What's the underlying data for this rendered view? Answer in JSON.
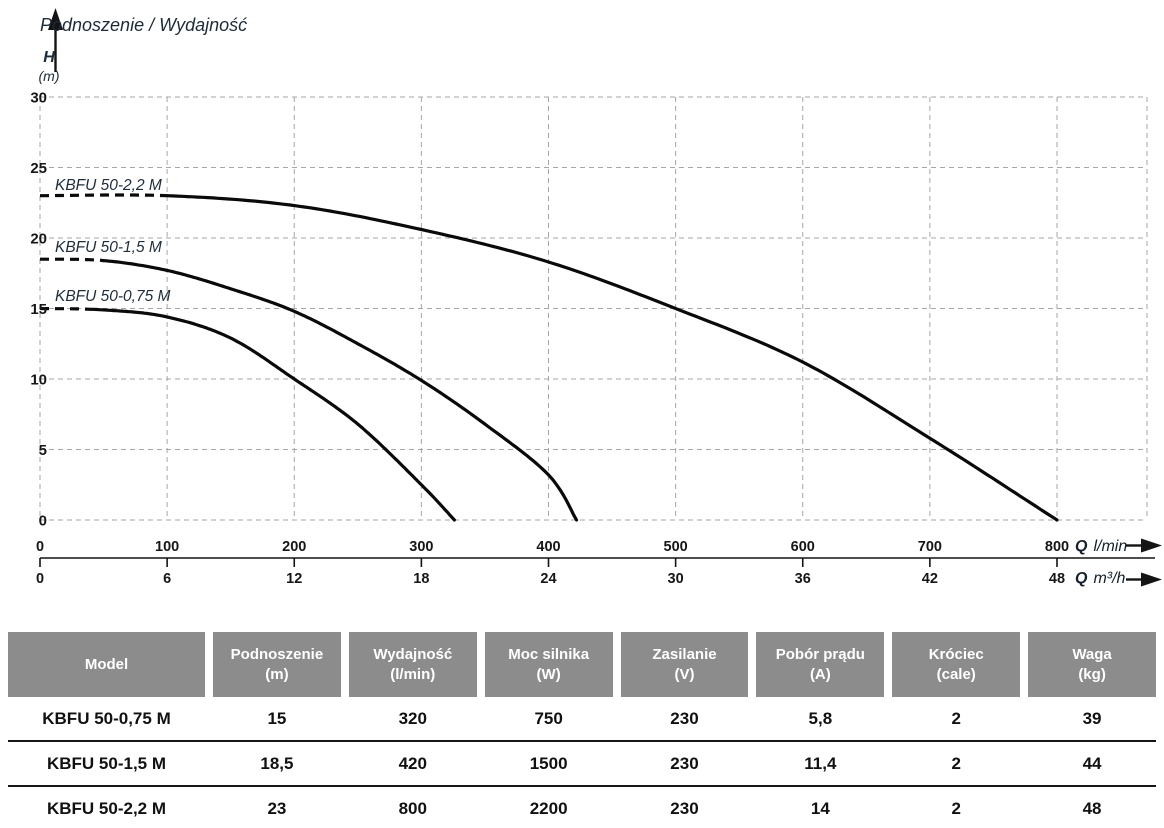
{
  "chart_data": {
    "type": "line",
    "title": "Podnoszenie / Wydajność",
    "grid": "dashed",
    "legend_position": "labels-at-left-of-curves",
    "colors": {
      "curve": "#0a0a0a",
      "grid": "#a6a6a6",
      "title_text": "#1d2b38",
      "tick_text": "#161616",
      "table_header_bg": "#8c8c8c",
      "table_header_text": "#ffffff"
    },
    "y_axis": {
      "symbol": "H",
      "unit": "(m)",
      "range": [
        0,
        30
      ],
      "ticks": [
        0,
        5,
        10,
        15,
        20,
        25,
        30
      ]
    },
    "x_axis_primary": {
      "symbol": "Q",
      "unit": "l/min",
      "range": [
        0,
        800
      ],
      "ticks": [
        0,
        100,
        200,
        300,
        400,
        500,
        600,
        700,
        800
      ]
    },
    "x_axis_secondary": {
      "symbol": "Q",
      "unit": "m³/h",
      "ticks": [
        0,
        6,
        12,
        18,
        24,
        30,
        36,
        42,
        48
      ]
    },
    "series": [
      {
        "name": "KBFU 50-0,75 M",
        "dash_until_q": 42,
        "points": [
          [
            0,
            15
          ],
          [
            50,
            14.9
          ],
          [
            100,
            14.4
          ],
          [
            150,
            12.9
          ],
          [
            200,
            10
          ],
          [
            250,
            6.8
          ],
          [
            300,
            2.5
          ],
          [
            326,
            0
          ]
        ]
      },
      {
        "name": "KBFU 50-1,5 M",
        "dash_until_q": 49,
        "points": [
          [
            0,
            18.5
          ],
          [
            50,
            18.4
          ],
          [
            100,
            17.7
          ],
          [
            150,
            16.4
          ],
          [
            200,
            14.8
          ],
          [
            250,
            12.5
          ],
          [
            300,
            9.9
          ],
          [
            350,
            6.8
          ],
          [
            400,
            3.2
          ],
          [
            422,
            0
          ]
        ]
      },
      {
        "name": "KBFU 50-2,2 M",
        "dash_until_q": 98,
        "points": [
          [
            0,
            23
          ],
          [
            100,
            23
          ],
          [
            200,
            22.3
          ],
          [
            300,
            20.6
          ],
          [
            400,
            18.3
          ],
          [
            500,
            15
          ],
          [
            600,
            11.2
          ],
          [
            700,
            5.8
          ],
          [
            800,
            0
          ]
        ]
      }
    ]
  },
  "table": {
    "columns": [
      {
        "label": "Model",
        "unit": ""
      },
      {
        "label": "Podnoszenie",
        "unit": "(m)"
      },
      {
        "label": "Wydajność",
        "unit": "(l/min)"
      },
      {
        "label": "Moc silnika",
        "unit": "(W)"
      },
      {
        "label": "Zasilanie",
        "unit": "(V)"
      },
      {
        "label": "Pobór prądu",
        "unit": "(A)"
      },
      {
        "label": "Króciec",
        "unit": "(cale)"
      },
      {
        "label": "Waga",
        "unit": "(kg)"
      }
    ],
    "rows": [
      [
        "KBFU 50-0,75 M",
        "15",
        "320",
        "750",
        "230",
        "5,8",
        "2",
        "39"
      ],
      [
        "KBFU 50-1,5 M",
        "18,5",
        "420",
        "1500",
        "230",
        "11,4",
        "2",
        "44"
      ],
      [
        "KBFU 50-2,2 M",
        "23",
        "800",
        "2200",
        "230",
        "14",
        "2",
        "48"
      ]
    ]
  }
}
